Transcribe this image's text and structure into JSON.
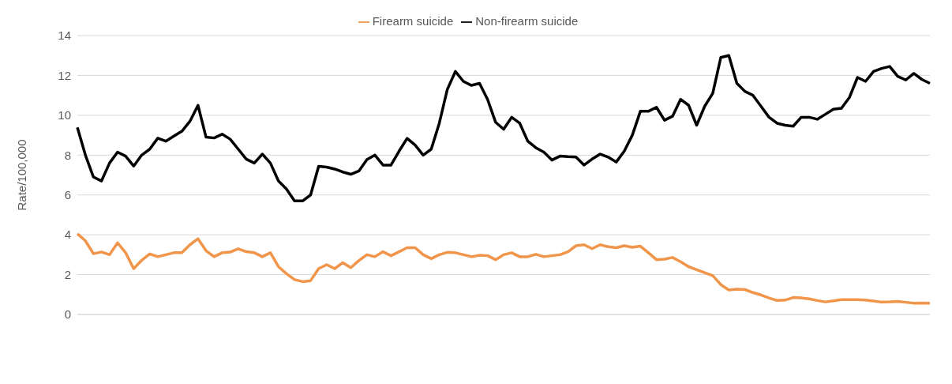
{
  "chart_data": {
    "type": "line",
    "ylabel": "Rate/100,000",
    "legend": "top",
    "grid": "y",
    "marker": "none",
    "line_style": "solid",
    "ylim": [
      0,
      14
    ],
    "yticks": [
      0,
      2,
      4,
      6,
      8,
      10,
      12,
      14
    ],
    "categories": [
      null,
      null,
      null,
      null,
      null,
      null,
      null,
      null,
      null,
      null,
      null,
      null,
      null,
      null,
      null,
      null,
      null,
      null,
      null,
      null,
      null,
      null,
      null,
      null,
      null,
      null,
      null,
      null,
      null,
      null,
      null,
      null,
      null,
      null,
      null,
      null,
      null,
      null,
      null,
      null,
      null,
      null,
      null,
      null,
      null,
      null,
      null,
      null,
      null,
      null,
      null,
      null,
      null,
      null,
      null,
      null,
      null,
      null,
      null,
      null,
      null,
      null,
      null,
      null,
      null,
      null,
      null,
      null,
      null,
      null,
      null,
      null,
      null,
      null,
      null,
      null,
      null,
      null,
      null,
      null,
      null,
      null,
      null,
      null,
      null,
      null,
      null,
      null,
      null,
      null,
      null,
      null,
      null,
      null,
      null,
      null,
      null,
      null,
      null,
      null,
      null,
      null,
      null,
      null,
      null,
      null,
      null
    ],
    "series": [
      {
        "name": "Firearm suicide",
        "color": "#f0954a",
        "values": [
          4.05,
          3.7,
          3.05,
          3.14,
          3.0,
          3.6,
          3.1,
          2.3,
          2.72,
          3.04,
          2.9,
          3.0,
          3.1,
          3.1,
          3.5,
          3.8,
          3.2,
          2.9,
          3.1,
          3.13,
          3.3,
          3.15,
          3.1,
          2.9,
          3.1,
          2.4,
          2.05,
          1.75,
          1.65,
          1.7,
          2.3,
          2.5,
          2.3,
          2.6,
          2.35,
          2.7,
          3.0,
          2.9,
          3.15,
          2.95,
          3.15,
          3.35,
          3.35,
          3.0,
          2.8,
          3.0,
          3.12,
          3.1,
          3.0,
          2.9,
          2.97,
          2.95,
          2.75,
          3.0,
          3.1,
          2.9,
          2.9,
          3.02,
          2.9,
          2.95,
          3.0,
          3.15,
          3.45,
          3.5,
          3.3,
          3.5,
          3.4,
          3.35,
          3.45,
          3.37,
          3.43,
          3.1,
          2.75,
          2.78,
          2.86,
          2.65,
          2.4,
          2.25,
          2.1,
          1.95,
          1.5,
          1.23,
          1.27,
          1.25,
          1.1,
          0.98,
          0.83,
          0.7,
          0.72,
          0.85,
          0.83,
          0.78,
          0.7,
          0.63,
          0.68,
          0.74,
          0.74,
          0.74,
          0.72,
          0.67,
          0.62,
          0.63,
          0.65,
          0.61,
          0.57,
          0.58,
          0.57
        ]
      },
      {
        "name": "Non-firearm suicide",
        "color": "#000000",
        "values": [
          9.39,
          8.0,
          6.9,
          6.7,
          7.6,
          8.15,
          7.95,
          7.45,
          8.0,
          8.3,
          8.85,
          8.7,
          8.95,
          9.2,
          9.7,
          10.5,
          8.9,
          8.86,
          9.05,
          8.8,
          8.3,
          7.8,
          7.6,
          8.05,
          7.6,
          6.7,
          6.3,
          5.7,
          5.7,
          6.0,
          7.44,
          7.4,
          7.3,
          7.15,
          7.04,
          7.2,
          7.77,
          8.0,
          7.5,
          7.5,
          8.2,
          8.84,
          8.5,
          8.0,
          8.3,
          9.6,
          11.3,
          12.2,
          11.7,
          11.5,
          11.6,
          10.8,
          9.65,
          9.3,
          9.9,
          9.6,
          8.7,
          8.37,
          8.15,
          7.75,
          7.95,
          7.92,
          7.9,
          7.5,
          7.8,
          8.05,
          7.9,
          7.65,
          8.2,
          9.0,
          10.2,
          10.2,
          10.4,
          9.75,
          9.95,
          10.8,
          10.5,
          9.5,
          10.45,
          11.1,
          12.9,
          13.0,
          11.6,
          11.2,
          11.0,
          10.45,
          9.9,
          9.6,
          9.5,
          9.45,
          9.9,
          9.9,
          9.8,
          10.05,
          10.3,
          10.35,
          10.9,
          11.9,
          11.7,
          12.2,
          12.35,
          12.45,
          11.95,
          11.77,
          12.1,
          11.8,
          11.6
        ]
      }
    ]
  }
}
